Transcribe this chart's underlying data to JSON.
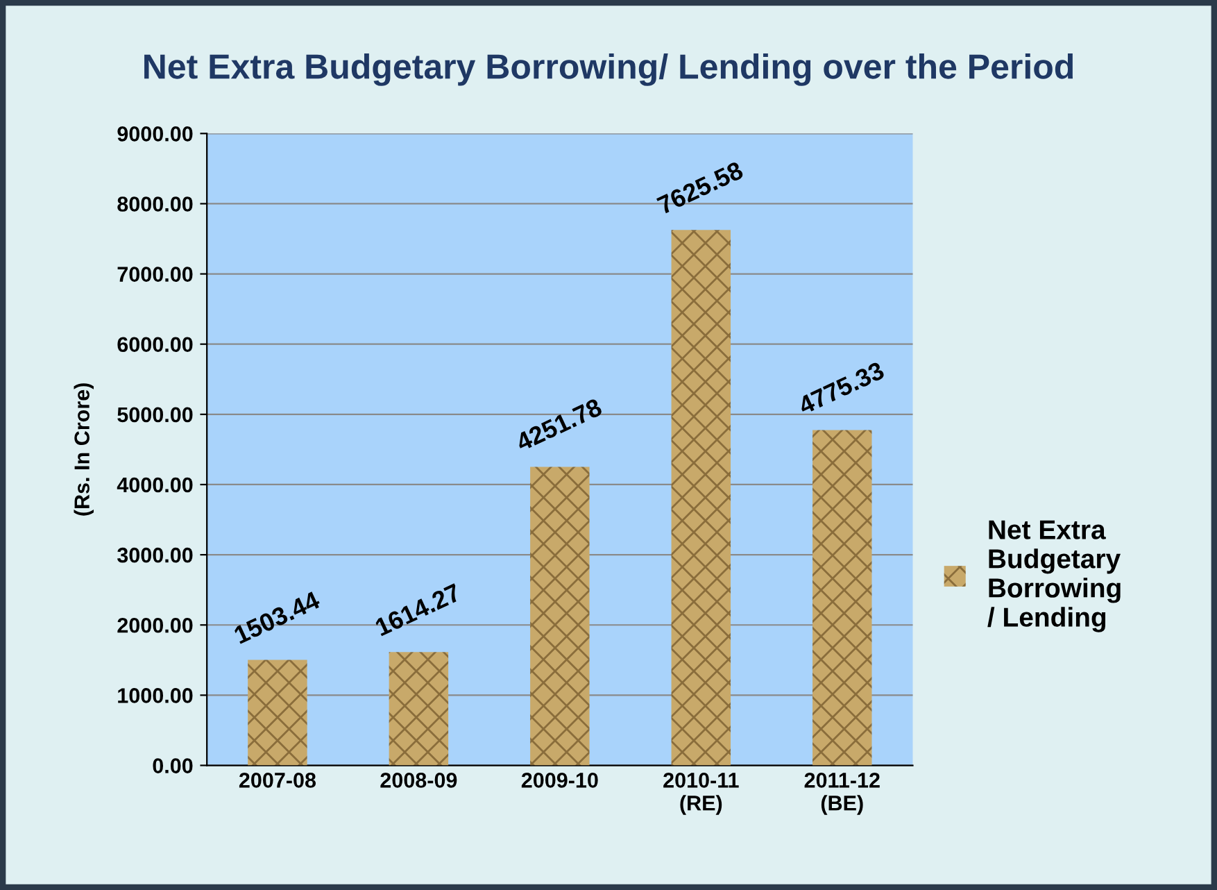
{
  "chart_data": {
    "type": "bar",
    "title": "Net Extra Budgetary Borrowing/ Lending over the Period",
    "ylabel": "(Rs. In Crore)",
    "categories": [
      "2007-08",
      "2008-09",
      "2009-10",
      "2010-11\n(RE)",
      "2011-12\n(BE)"
    ],
    "series": [
      {
        "name": "Net Extra\nBudgetary\nBorrowing\n/ Lending",
        "color": "#c8a96a",
        "values": [
          1503.44,
          1614.27,
          4251.78,
          7625.58,
          4775.33
        ]
      }
    ],
    "ylim": [
      0,
      9000
    ],
    "yticks": [
      {
        "value": 0,
        "label": "0.00"
      },
      {
        "value": 1000,
        "label": "1000.00"
      },
      {
        "value": 2000,
        "label": "2000.00"
      },
      {
        "value": 3000,
        "label": "3000.00"
      },
      {
        "value": 4000,
        "label": "4000.00"
      },
      {
        "value": 5000,
        "label": "5000.00"
      },
      {
        "value": 6000,
        "label": "6000.00"
      },
      {
        "value": 7000,
        "label": "7000.00"
      },
      {
        "value": 8000,
        "label": "8000.00"
      },
      {
        "value": 9000,
        "label": "9000.00"
      }
    ],
    "grid": "y",
    "legend": "right",
    "data_labels": true
  }
}
